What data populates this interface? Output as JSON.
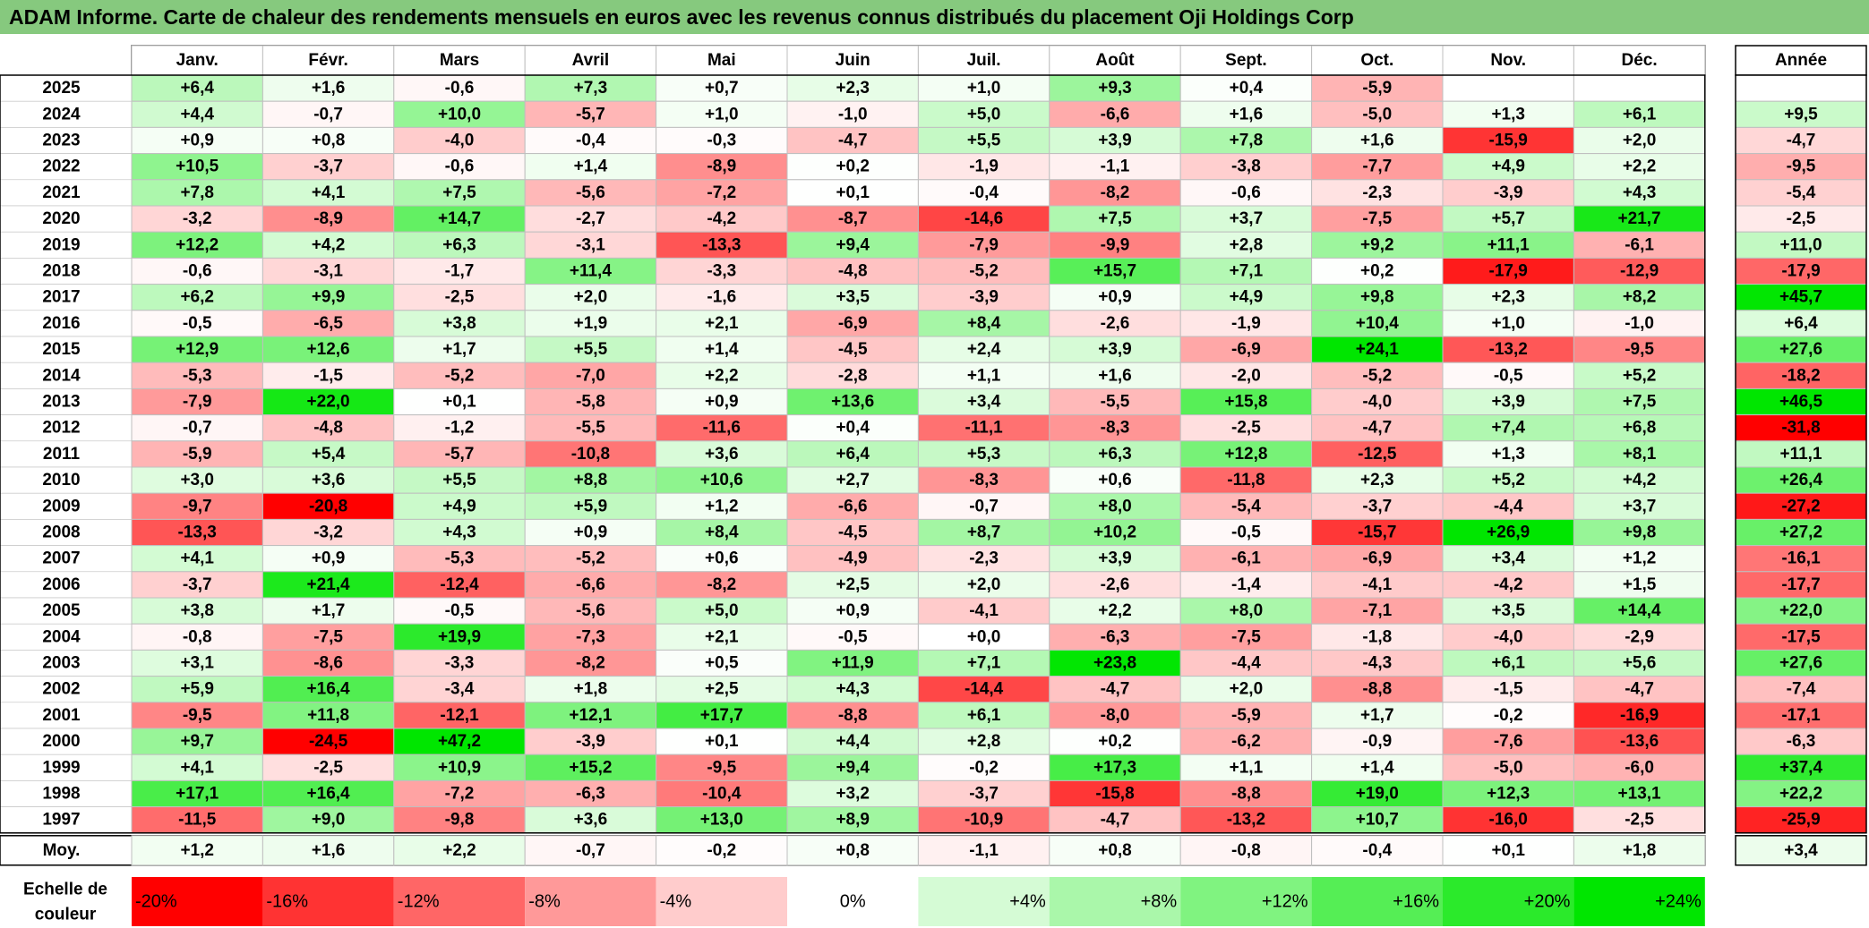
{
  "title": "ADAM Informe. Carte de chaleur des rendements mensuels en euros avec les revenus connus distribués du placement Oji Holdings Corp",
  "colors": {
    "title_bar": "#86c97e",
    "negative_max": "#ff0000",
    "positive_max": "#00e600",
    "neutral": "#ffffff"
  },
  "chart_data": {
    "type": "heatmap",
    "title": "ADAM Informe. Carte de chaleur des rendements mensuels en euros avec les revenus connus distribués du placement Oji Holdings Corp",
    "columns": [
      "Janv.",
      "Févr.",
      "Mars",
      "Avril",
      "Mai",
      "Juin",
      "Juil.",
      "Août",
      "Sept.",
      "Oct.",
      "Nov.",
      "Déc."
    ],
    "year_header": "Année",
    "rows": [
      {
        "year": "2025",
        "values": [
          "+6,4",
          "+1,6",
          "-0,6",
          "+7,3",
          "+0,7",
          "+2,3",
          "+1,0",
          "+9,3",
          "+0,4",
          "-5,9",
          "",
          ""
        ],
        "annual": ""
      },
      {
        "year": "2024",
        "values": [
          "+4,4",
          "-0,7",
          "+10,0",
          "-5,7",
          "+1,0",
          "-1,0",
          "+5,0",
          "-6,6",
          "+1,6",
          "-5,0",
          "+1,3",
          "+6,1"
        ],
        "annual": "+9,5"
      },
      {
        "year": "2023",
        "values": [
          "+0,9",
          "+0,8",
          "-4,0",
          "-0,4",
          "-0,3",
          "-4,7",
          "+5,5",
          "+3,9",
          "+7,8",
          "+1,6",
          "-15,9",
          "+2,0"
        ],
        "annual": "-4,7"
      },
      {
        "year": "2022",
        "values": [
          "+10,5",
          "-3,7",
          "-0,6",
          "+1,4",
          "-8,9",
          "+0,2",
          "-1,9",
          "-1,1",
          "-3,8",
          "-7,7",
          "+4,9",
          "+2,2"
        ],
        "annual": "-9,5"
      },
      {
        "year": "2021",
        "values": [
          "+7,8",
          "+4,1",
          "+7,5",
          "-5,6",
          "-7,2",
          "+0,1",
          "-0,4",
          "-8,2",
          "-0,6",
          "-2,3",
          "-3,9",
          "+4,3"
        ],
        "annual": "-5,4"
      },
      {
        "year": "2020",
        "values": [
          "-3,2",
          "-8,9",
          "+14,7",
          "-2,7",
          "-4,2",
          "-8,7",
          "-14,6",
          "+7,5",
          "+3,7",
          "-7,5",
          "+5,7",
          "+21,7"
        ],
        "annual": "-2,5"
      },
      {
        "year": "2019",
        "values": [
          "+12,2",
          "+4,2",
          "+6,3",
          "-3,1",
          "-13,3",
          "+9,4",
          "-7,9",
          "-9,9",
          "+2,8",
          "+9,2",
          "+11,1",
          "-6,1"
        ],
        "annual": "+11,0"
      },
      {
        "year": "2018",
        "values": [
          "-0,6",
          "-3,1",
          "-1,7",
          "+11,4",
          "-3,3",
          "-4,8",
          "-5,2",
          "+15,7",
          "+7,1",
          "+0,2",
          "-17,9",
          "-12,9"
        ],
        "annual": "-17,9"
      },
      {
        "year": "2017",
        "values": [
          "+6,2",
          "+9,9",
          "-2,5",
          "+2,0",
          "-1,6",
          "+3,5",
          "-3,9",
          "+0,9",
          "+4,9",
          "+9,8",
          "+2,3",
          "+8,2"
        ],
        "annual": "+45,7"
      },
      {
        "year": "2016",
        "values": [
          "-0,5",
          "-6,5",
          "+3,8",
          "+1,9",
          "+2,1",
          "-6,9",
          "+8,4",
          "-2,6",
          "-1,9",
          "+10,4",
          "+1,0",
          "-1,0"
        ],
        "annual": "+6,4"
      },
      {
        "year": "2015",
        "values": [
          "+12,9",
          "+12,6",
          "+1,7",
          "+5,5",
          "+1,4",
          "-4,5",
          "+2,4",
          "+3,9",
          "-6,9",
          "+24,1",
          "-13,2",
          "-9,5"
        ],
        "annual": "+27,6"
      },
      {
        "year": "2014",
        "values": [
          "-5,3",
          "-1,5",
          "-5,2",
          "-7,0",
          "+2,2",
          "-2,8",
          "+1,1",
          "+1,6",
          "-2,0",
          "-5,2",
          "-0,5",
          "+5,2"
        ],
        "annual": "-18,2"
      },
      {
        "year": "2013",
        "values": [
          "-7,9",
          "+22,0",
          "+0,1",
          "-5,8",
          "+0,9",
          "+13,6",
          "+3,4",
          "-5,5",
          "+15,8",
          "-4,0",
          "+3,9",
          "+7,5"
        ],
        "annual": "+46,5"
      },
      {
        "year": "2012",
        "values": [
          "-0,7",
          "-4,8",
          "-1,2",
          "-5,5",
          "-11,6",
          "+0,4",
          "-11,1",
          "-8,3",
          "-2,5",
          "-4,7",
          "+7,4",
          "+6,8"
        ],
        "annual": "-31,8"
      },
      {
        "year": "2011",
        "values": [
          "-5,9",
          "+5,4",
          "-5,7",
          "-10,8",
          "+3,6",
          "+6,4",
          "+5,3",
          "+6,3",
          "+12,8",
          "-12,5",
          "+1,3",
          "+8,1"
        ],
        "annual": "+11,1"
      },
      {
        "year": "2010",
        "values": [
          "+3,0",
          "+3,6",
          "+5,5",
          "+8,8",
          "+10,6",
          "+2,7",
          "-8,3",
          "+0,6",
          "-11,8",
          "+2,3",
          "+5,2",
          "+4,2"
        ],
        "annual": "+26,4"
      },
      {
        "year": "2009",
        "values": [
          "-9,7",
          "-20,8",
          "+4,9",
          "+5,9",
          "+1,2",
          "-6,6",
          "-0,7",
          "+8,0",
          "-5,4",
          "-3,7",
          "-4,4",
          "+3,7"
        ],
        "annual": "-27,2"
      },
      {
        "year": "2008",
        "values": [
          "-13,3",
          "-3,2",
          "+4,3",
          "+0,9",
          "+8,4",
          "-4,5",
          "+8,7",
          "+10,2",
          "-0,5",
          "-15,7",
          "+26,9",
          "+9,8"
        ],
        "annual": "+27,2"
      },
      {
        "year": "2007",
        "values": [
          "+4,1",
          "+0,9",
          "-5,3",
          "-5,2",
          "+0,6",
          "-4,9",
          "-2,3",
          "+3,9",
          "-6,1",
          "-6,9",
          "+3,4",
          "+1,2"
        ],
        "annual": "-16,1"
      },
      {
        "year": "2006",
        "values": [
          "-3,7",
          "+21,4",
          "-12,4",
          "-6,6",
          "-8,2",
          "+2,5",
          "+2,0",
          "-2,6",
          "-1,4",
          "-4,1",
          "-4,2",
          "+1,5"
        ],
        "annual": "-17,7"
      },
      {
        "year": "2005",
        "values": [
          "+3,8",
          "+1,7",
          "-0,5",
          "-5,6",
          "+5,0",
          "+0,9",
          "-4,1",
          "+2,2",
          "+8,0",
          "-7,1",
          "+3,5",
          "+14,4"
        ],
        "annual": "+22,0"
      },
      {
        "year": "2004",
        "values": [
          "-0,8",
          "-7,5",
          "+19,9",
          "-7,3",
          "+2,1",
          "-0,5",
          "+0,0",
          "-6,3",
          "-7,5",
          "-1,8",
          "-4,0",
          "-2,9"
        ],
        "annual": "-17,5"
      },
      {
        "year": "2003",
        "values": [
          "+3,1",
          "-8,6",
          "-3,3",
          "-8,2",
          "+0,5",
          "+11,9",
          "+7,1",
          "+23,8",
          "-4,4",
          "-4,3",
          "+6,1",
          "+5,6"
        ],
        "annual": "+27,6"
      },
      {
        "year": "2002",
        "values": [
          "+5,9",
          "+16,4",
          "-3,4",
          "+1,8",
          "+2,5",
          "+4,3",
          "-14,4",
          "-4,7",
          "+2,0",
          "-8,8",
          "-1,5",
          "-4,7"
        ],
        "annual": "-7,4"
      },
      {
        "year": "2001",
        "values": [
          "-9,5",
          "+11,8",
          "-12,1",
          "+12,1",
          "+17,7",
          "-8,8",
          "+6,1",
          "-8,0",
          "-5,9",
          "+1,7",
          "-0,2",
          "-16,9"
        ],
        "annual": "-17,1"
      },
      {
        "year": "2000",
        "values": [
          "+9,7",
          "-24,5",
          "+47,2",
          "-3,9",
          "+0,1",
          "+4,4",
          "+2,8",
          "+0,2",
          "-6,2",
          "-0,9",
          "-7,6",
          "-13,6"
        ],
        "annual": "-6,3"
      },
      {
        "year": "1999",
        "values": [
          "+4,1",
          "-2,5",
          "+10,9",
          "+15,2",
          "-9,5",
          "+9,4",
          "-0,2",
          "+17,3",
          "+1,1",
          "+1,4",
          "-5,0",
          "-6,0"
        ],
        "annual": "+37,4"
      },
      {
        "year": "1998",
        "values": [
          "+17,1",
          "+16,4",
          "-7,2",
          "-6,3",
          "-10,4",
          "+3,2",
          "-3,7",
          "-15,8",
          "-8,8",
          "+19,0",
          "+12,3",
          "+13,1"
        ],
        "annual": "+22,2"
      },
      {
        "year": "1997",
        "values": [
          "-11,5",
          "+9,0",
          "-9,8",
          "+3,6",
          "+13,0",
          "+8,9",
          "-10,9",
          "-4,7",
          "-13,2",
          "+10,7",
          "-16,0",
          "-2,5"
        ],
        "annual": "-25,9"
      }
    ],
    "average": {
      "label": "Moy.",
      "values": [
        "+1,2",
        "+1,6",
        "+2,2",
        "-0,7",
        "-0,2",
        "+0,8",
        "-1,1",
        "+0,8",
        "-0,8",
        "-0,4",
        "+0,1",
        "+1,8"
      ],
      "annual": "+3,4"
    },
    "scale": {
      "label_line1": "Echelle de",
      "label_line2": "couleur",
      "entries": [
        {
          "label": "-20%",
          "value": -20
        },
        {
          "label": "-16%",
          "value": -16
        },
        {
          "label": "-12%",
          "value": -12
        },
        {
          "label": "-8%",
          "value": -8
        },
        {
          "label": "-4%",
          "value": -4
        },
        {
          "label": "0%",
          "value": 0
        },
        {
          "label": "+4%",
          "value": 4
        },
        {
          "label": "+8%",
          "value": 8
        },
        {
          "label": "+12%",
          "value": 12
        },
        {
          "label": "+16%",
          "value": 16
        },
        {
          "label": "+20%",
          "value": 20
        },
        {
          "label": "+24%",
          "value": 24
        }
      ]
    }
  }
}
